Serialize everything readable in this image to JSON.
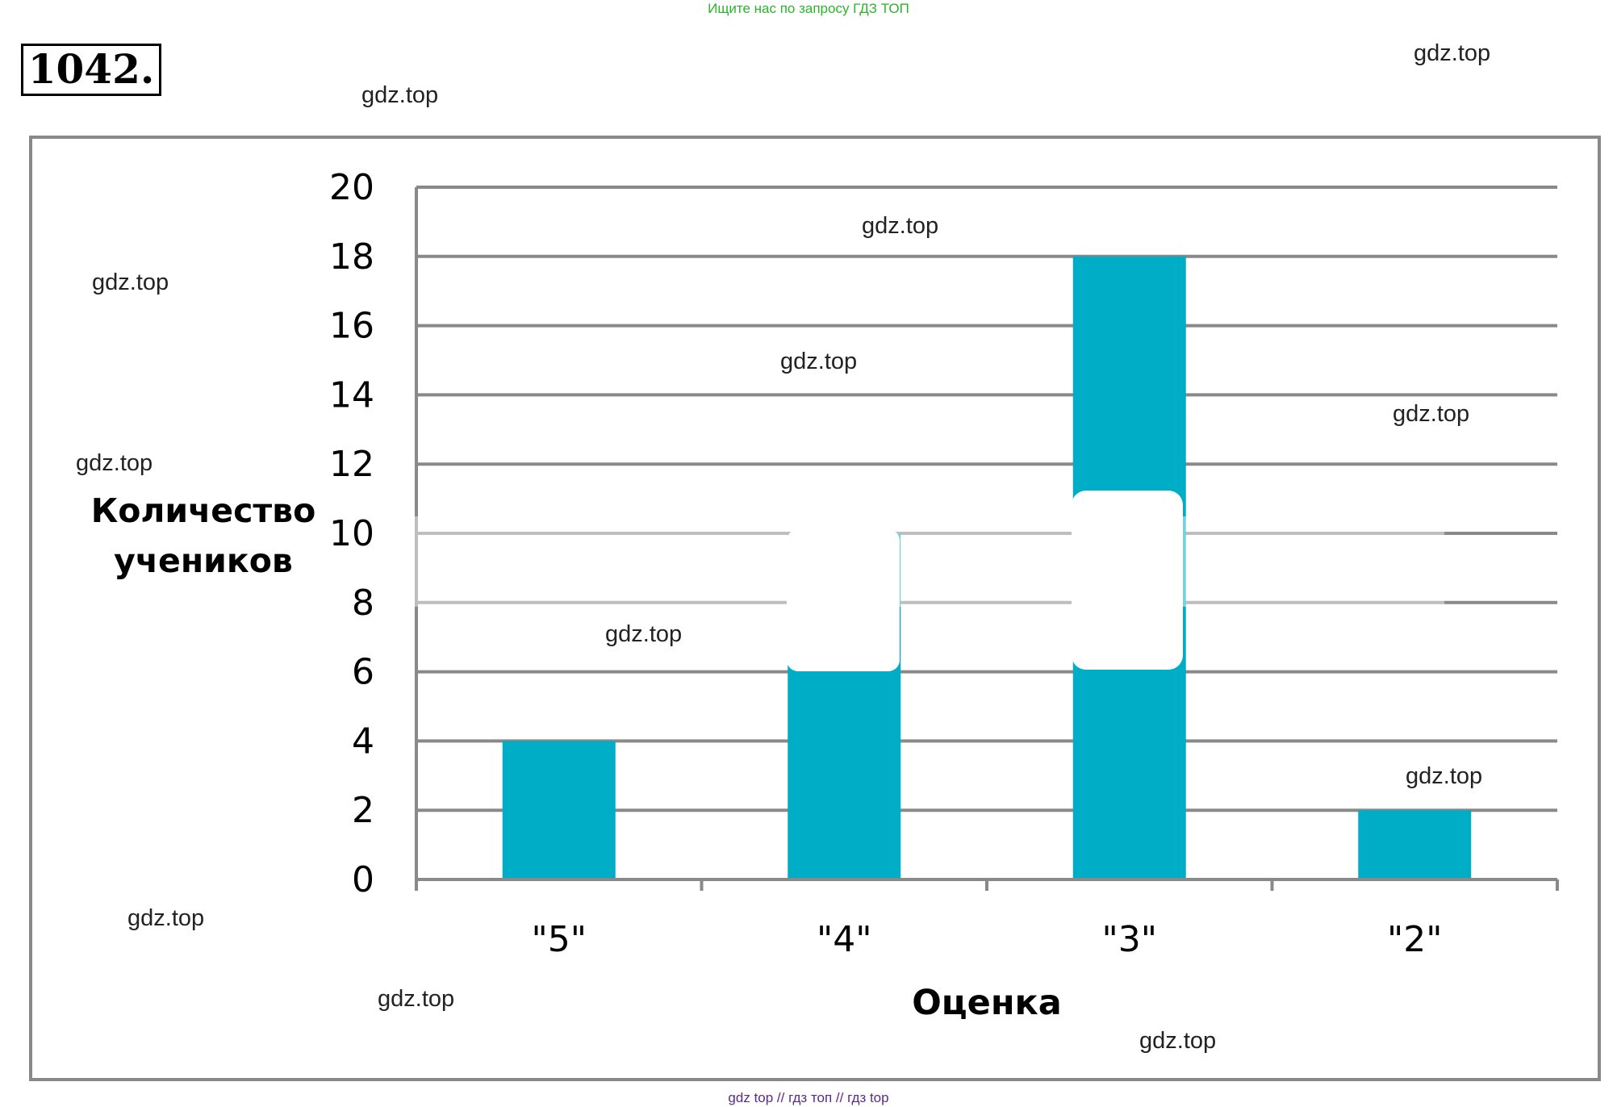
{
  "header": {
    "banner": "Ищите нас по запросу ГДЗ ТОП",
    "problem_number": "1042."
  },
  "watermarks": [
    "gdz.top",
    "gdz.top",
    "gdz.top",
    "gdz.top",
    "gdz.top",
    "gdz.top",
    "gdz.top",
    "gdz.top",
    "gdz.top",
    "gdz.top",
    "gdz.top",
    "gdz.top"
  ],
  "footer": {
    "text": "gdz top  //  гдз топ  //  гдз top"
  },
  "colors": {
    "bar": "#00adc6",
    "grid": "#898989",
    "frame": "#898989",
    "banner": "#2ab52a",
    "footer": "#5a2a8a"
  },
  "chart_data": {
    "type": "bar",
    "categories": [
      "\"5\"",
      "\"4\"",
      "\"3\"",
      "\"2\""
    ],
    "values": [
      4,
      10,
      18,
      2
    ],
    "title": "",
    "xlabel": "Оценка",
    "ylabel": "Количество учеников",
    "ylim": [
      0,
      20
    ],
    "yticks": [
      0,
      2,
      4,
      6,
      8,
      10,
      12,
      14,
      16,
      18,
      20
    ],
    "grid": true,
    "legend": "none"
  }
}
